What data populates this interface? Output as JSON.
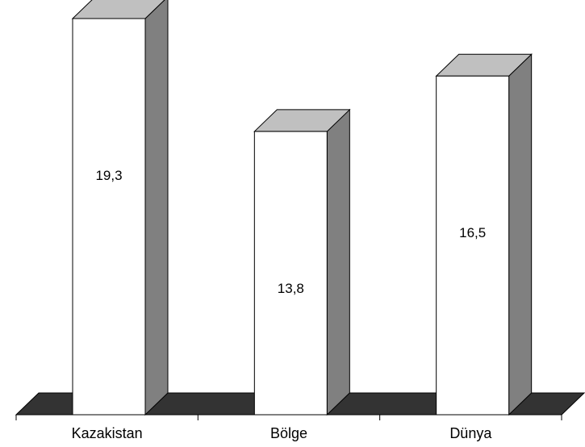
{
  "chart_data": {
    "type": "bar",
    "categories": [
      "Kazakistan",
      "Bölge",
      "Dünya"
    ],
    "values": [
      19.3,
      13.8,
      16.5
    ],
    "value_labels": [
      "19,3",
      "13,8",
      "16,5"
    ],
    "title": "",
    "xlabel": "",
    "ylabel": "",
    "ylim": [
      0,
      20
    ],
    "grid": false,
    "legend": "none",
    "style": "3d-column",
    "colors": {
      "bar_front": "#ffffff",
      "bar_side": "#808080",
      "bar_top": "#c0c0c0",
      "floor": "#333333",
      "outline": "#000000"
    }
  }
}
